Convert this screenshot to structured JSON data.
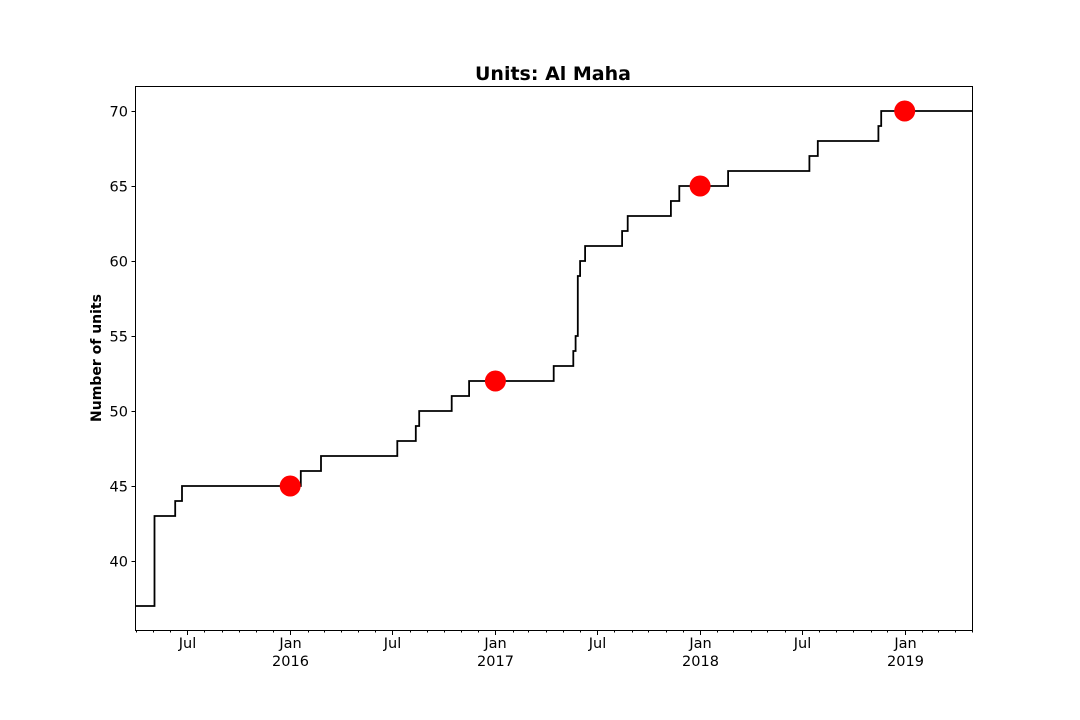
{
  "chart_data": {
    "type": "line",
    "title": "Units: Al Maha",
    "xlabel": "",
    "ylabel": "Number of units",
    "x_axis": {
      "type": "date",
      "range": [
        "2015-04-01",
        "2019-05-01"
      ],
      "tick_labels": [
        {
          "date": "2015-07-01",
          "label": "Jul",
          "sublabel": ""
        },
        {
          "date": "2016-01-01",
          "label": "Jan",
          "sublabel": "2016"
        },
        {
          "date": "2016-07-01",
          "label": "Jul",
          "sublabel": ""
        },
        {
          "date": "2017-01-01",
          "label": "Jan",
          "sublabel": "2017"
        },
        {
          "date": "2017-07-01",
          "label": "Jul",
          "sublabel": ""
        },
        {
          "date": "2018-01-01",
          "label": "Jan",
          "sublabel": "2018"
        },
        {
          "date": "2018-07-01",
          "label": "Jul",
          "sublabel": ""
        },
        {
          "date": "2019-01-01",
          "label": "Jan",
          "sublabel": "2019"
        }
      ]
    },
    "ylim": [
      35.4,
      71.6
    ],
    "yticks": [
      40,
      45,
      50,
      55,
      60,
      65,
      70
    ],
    "grid": false,
    "legend": "none",
    "series": [
      {
        "kind": "step",
        "color": "#000000",
        "points": [
          {
            "x": "2015-04-01",
            "y": 37
          },
          {
            "x": "2015-05-04",
            "y": 43
          },
          {
            "x": "2015-06-10",
            "y": 44
          },
          {
            "x": "2015-06-22",
            "y": 45
          },
          {
            "x": "2016-01-20",
            "y": 46
          },
          {
            "x": "2016-02-25",
            "y": 47
          },
          {
            "x": "2016-07-10",
            "y": 48
          },
          {
            "x": "2016-08-12",
            "y": 49
          },
          {
            "x": "2016-08-18",
            "y": 50
          },
          {
            "x": "2016-10-15",
            "y": 51
          },
          {
            "x": "2016-11-15",
            "y": 52
          },
          {
            "x": "2017-04-15",
            "y": 53
          },
          {
            "x": "2017-05-20",
            "y": 54
          },
          {
            "x": "2017-05-24",
            "y": 55
          },
          {
            "x": "2017-05-28",
            "y": 59
          },
          {
            "x": "2017-06-01",
            "y": 60
          },
          {
            "x": "2017-06-10",
            "y": 61
          },
          {
            "x": "2017-08-15",
            "y": 62
          },
          {
            "x": "2017-08-25",
            "y": 63
          },
          {
            "x": "2017-11-10",
            "y": 64
          },
          {
            "x": "2017-11-25",
            "y": 65
          },
          {
            "x": "2018-02-20",
            "y": 66
          },
          {
            "x": "2018-07-15",
            "y": 67
          },
          {
            "x": "2018-07-30",
            "y": 68
          },
          {
            "x": "2018-11-15",
            "y": 69
          },
          {
            "x": "2018-11-20",
            "y": 70
          },
          {
            "x": "2019-05-01",
            "y": 70
          }
        ]
      }
    ],
    "markers": {
      "color": "#ff0000",
      "points": [
        {
          "x": "2016-01-01",
          "y": 45
        },
        {
          "x": "2017-01-01",
          "y": 52
        },
        {
          "x": "2018-01-01",
          "y": 65
        },
        {
          "x": "2019-01-01",
          "y": 70
        }
      ]
    }
  }
}
